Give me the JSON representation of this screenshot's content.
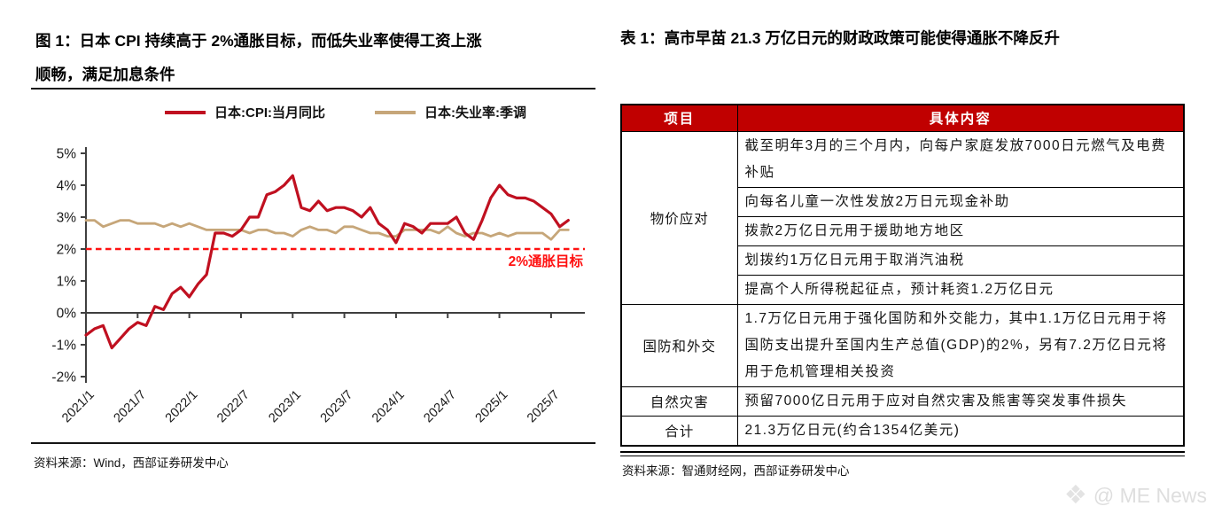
{
  "figure": {
    "title_line1": "图 1：日本 CPI 持续高于 2%通胀目标，而低失业率使得工资上涨",
    "title_line2": "顺畅，满足加息条件",
    "source": "资料来源：Wind，西部证券研发中心"
  },
  "chart_data": {
    "type": "line",
    "title": "日本 CPI 持续高于 2%通胀目标，而低失业率使得工资上涨顺畅，满足加息条件",
    "x_monthly_start": "2021/1",
    "x_tick_labels": [
      "2021/1",
      "2021/7",
      "2022/1",
      "2022/7",
      "2023/1",
      "2023/7",
      "2024/1",
      "2024/7",
      "2025/1",
      "2025/7"
    ],
    "y_tick_labels": [
      "5%",
      "4%",
      "3%",
      "2%",
      "1%",
      "0%",
      "-1%",
      "-2%"
    ],
    "ylim": [
      -2,
      5
    ],
    "grid": false,
    "legend_position": "top",
    "reference_line": {
      "value": 2,
      "label": "2%通胀目标",
      "color": "#ff1111",
      "style": "dashed"
    },
    "series": [
      {
        "name": "日本:CPI:当月同比",
        "color": "#c01020",
        "values": [
          -0.7,
          -0.5,
          -0.4,
          -1.1,
          -0.8,
          -0.5,
          -0.3,
          -0.4,
          0.2,
          0.1,
          0.6,
          0.8,
          0.5,
          0.9,
          1.2,
          2.5,
          2.5,
          2.4,
          2.6,
          3.0,
          3.0,
          3.7,
          3.8,
          4.0,
          4.3,
          3.3,
          3.2,
          3.5,
          3.2,
          3.3,
          3.3,
          3.2,
          3.0,
          3.3,
          2.8,
          2.6,
          2.2,
          2.8,
          2.7,
          2.5,
          2.8,
          2.8,
          2.8,
          3.0,
          2.5,
          2.3,
          2.9,
          3.6,
          4.0,
          3.7,
          3.6,
          3.6,
          3.5,
          3.3,
          3.1,
          2.7,
          2.9
        ]
      },
      {
        "name": "日本:失业率:季调",
        "color": "#c6a679",
        "values": [
          2.9,
          2.9,
          2.7,
          2.8,
          2.9,
          2.9,
          2.8,
          2.8,
          2.8,
          2.7,
          2.8,
          2.7,
          2.8,
          2.7,
          2.6,
          2.6,
          2.6,
          2.6,
          2.6,
          2.5,
          2.6,
          2.6,
          2.5,
          2.5,
          2.4,
          2.6,
          2.7,
          2.6,
          2.6,
          2.5,
          2.7,
          2.7,
          2.6,
          2.5,
          2.5,
          2.4,
          2.4,
          2.6,
          2.6,
          2.6,
          2.6,
          2.5,
          2.7,
          2.5,
          2.4,
          2.5,
          2.5,
          2.4,
          2.5,
          2.4,
          2.5,
          2.5,
          2.5,
          2.5,
          2.3,
          2.6,
          2.6
        ]
      }
    ]
  },
  "table_section": {
    "title": "表 1：高市早苗 21.3 万亿日元的财政政策可能使得通胀不降反升",
    "source": "资料来源：智通财经网，西部证券研发中心",
    "header": [
      "项目",
      "具体内容"
    ],
    "groups": [
      {
        "category": "物价应对",
        "items": [
          "截至明年3月的三个月内，向每户家庭发放7000日元燃气及电费补贴",
          "向每名儿童一次性发放2万日元现金补助",
          "拨款2万亿日元用于援助地方地区",
          "划拨约1万亿日元用于取消汽油税",
          "提高个人所得税起征点，预计耗资1.2万亿日元"
        ]
      },
      {
        "category": "国防和外交",
        "items": [
          "1.7万亿日元用于强化国防和外交能力，其中1.1万亿日元用于将国防支出提升至国内生产总值(GDP)的2%，另有7.2万亿日元将用于危机管理相关投资"
        ]
      },
      {
        "category": "自然灾害",
        "items": [
          "预留7000亿日元用于应对自然灾害及熊害等突发事件损失"
        ]
      },
      {
        "category": "合计",
        "items": [
          "21.3万亿日元(约合1354亿美元)"
        ]
      }
    ]
  },
  "watermark": {
    "icon": "diamond-logo",
    "text": "@ ME News"
  }
}
